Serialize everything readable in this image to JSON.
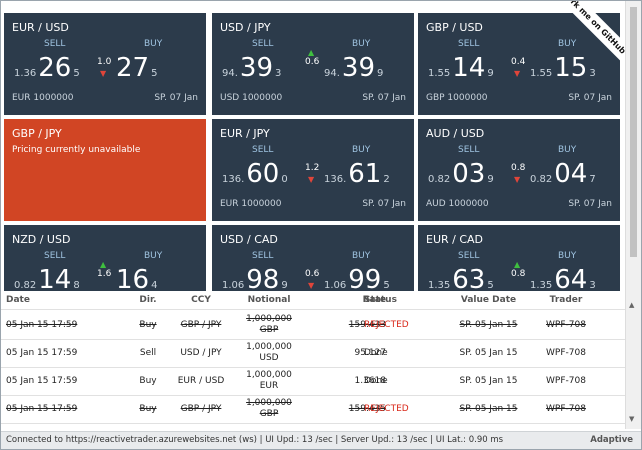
{
  "tiles": [
    {
      "pair": "EUR / USD",
      "sell_label": "SELL",
      "buy_label": "BUY",
      "sell": {
        "pre": "1.36",
        "big": "26",
        "pip": "5"
      },
      "buy": {
        "big": "27",
        "pip": "5"
      },
      "spread": "1.0",
      "direction": "down",
      "notional": "EUR 1000000",
      "date": "SP. 07 Jan"
    },
    {
      "pair": "USD / JPY",
      "sell_label": "SELL",
      "buy_label": "BUY",
      "sell": {
        "pre": "94.",
        "big": "39",
        "pip": "3"
      },
      "buy": {
        "pre": "94.",
        "big": "39",
        "pip": "9"
      },
      "spread": "0.6",
      "direction": "up",
      "notional": "USD 1000000",
      "date": "SP. 07 Jan"
    },
    {
      "pair": "GBP / USD",
      "sell_label": "SELL",
      "buy_label": "BUY",
      "sell": {
        "pre": "1.55",
        "big": "14",
        "pip": "9"
      },
      "buy": {
        "pre": "1.55",
        "big": "15",
        "pip": "3"
      },
      "spread": "0.4",
      "direction": "down",
      "notional": "GBP 1000000",
      "date": "SP. 07 Jan"
    },
    {
      "pair": "GBP / JPY",
      "message": "Pricing currently unavailable"
    },
    {
      "pair": "EUR / JPY",
      "sell_label": "SELL",
      "buy_label": "BUY",
      "sell": {
        "pre": "136.",
        "big": "60",
        "pip": "0"
      },
      "buy": {
        "pre": "136.",
        "big": "61",
        "pip": "2"
      },
      "spread": "1.2",
      "direction": "down",
      "notional": "EUR 1000000",
      "date": "SP. 07 Jan"
    },
    {
      "pair": "AUD / USD",
      "sell_label": "SELL",
      "buy_label": "BUY",
      "sell": {
        "pre": "0.82",
        "big": "03",
        "pip": "9"
      },
      "buy": {
        "pre": "0.82",
        "big": "04",
        "pip": "7"
      },
      "spread": "0.8",
      "direction": "down",
      "notional": "AUD 1000000",
      "date": "SP. 07 Jan"
    },
    {
      "pair": "NZD / USD",
      "sell_label": "SELL",
      "buy_label": "BUY",
      "sell": {
        "pre": "0.82",
        "big": "14",
        "pip": "8"
      },
      "buy": {
        "big": "16",
        "pip": "4"
      },
      "spread": "1.6",
      "direction": "up"
    },
    {
      "pair": "USD / CAD",
      "sell_label": "SELL",
      "buy_label": "BUY",
      "sell": {
        "pre": "1.06",
        "big": "98",
        "pip": "9"
      },
      "buy": {
        "pre": "1.06",
        "big": "99",
        "pip": "5"
      },
      "spread": "0.6",
      "direction": "down"
    },
    {
      "pair": "EUR / CAD",
      "sell_label": "SELL",
      "buy_label": "BUY",
      "sell": {
        "pre": "1.35",
        "big": "63",
        "pip": "5"
      },
      "buy": {
        "pre": "1.35",
        "big": "64",
        "pip": "3"
      },
      "spread": "0.8",
      "direction": "up"
    }
  ],
  "ribbon": "Fork me on GitHub",
  "blotter": {
    "columns": [
      "Date",
      "Dir.",
      "CCY",
      "Notional",
      "Rate",
      "Status",
      "Value Date",
      "Trader"
    ],
    "rows": [
      {
        "date": "05 Jan 15 17:59",
        "dir": "Buy",
        "ccy": "GBP / JPY",
        "notional": "1,000,000",
        "notional_ccy": "GBP",
        "rate": "159.433",
        "status": "REJECTED",
        "value_date": "SP. 05 Jan 15",
        "trader": "WPF-708",
        "rejected": true
      },
      {
        "date": "05 Jan 15 17:59",
        "dir": "Sell",
        "ccy": "USD / JPY",
        "notional": "1,000,000",
        "notional_ccy": "USD",
        "rate": "95.127",
        "status": "Done",
        "value_date": "SP. 05 Jan 15",
        "trader": "WPF-708",
        "rejected": false
      },
      {
        "date": "05 Jan 15 17:59",
        "dir": "Buy",
        "ccy": "EUR / USD",
        "notional": "1,000,000",
        "notional_ccy": "EUR",
        "rate": "1.3618",
        "status": "Done",
        "value_date": "SP. 05 Jan 15",
        "trader": "WPF-708",
        "rejected": false
      },
      {
        "date": "05 Jan 15 17:59",
        "dir": "Buy",
        "ccy": "GBP / JPY",
        "notional": "1,000,000",
        "notional_ccy": "GBP",
        "rate": "159.435",
        "status": "REJECTED",
        "value_date": "SP. 05 Jan 15",
        "trader": "WPF-708",
        "rejected": true
      }
    ]
  },
  "status_bar": {
    "text": "Connected to https://reactivetrader.azurewebsites.net (ws) | UI Upd.: 13 /sec | Server Upd.: 13 /sec | UI Lat.: 0.90 ms",
    "brand": "Adaptive"
  }
}
